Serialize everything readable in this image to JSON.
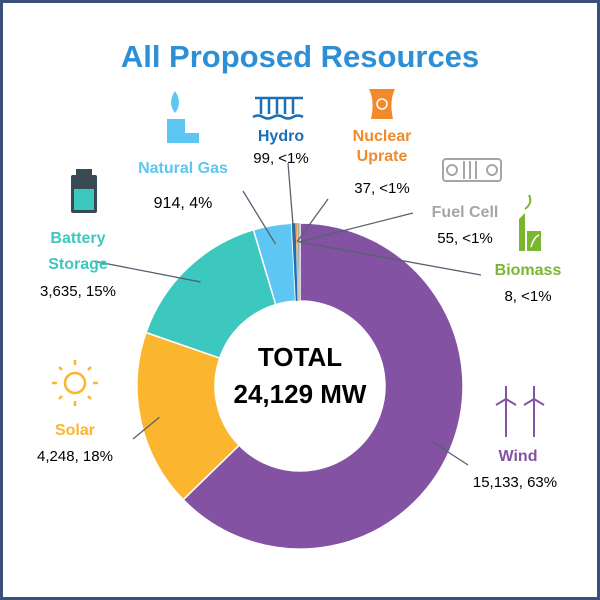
{
  "chart_data": {
    "type": "pie",
    "title": "All Proposed Resources",
    "center_label": {
      "line1": "TOTAL",
      "line2": "24,129 MW"
    },
    "slices": [
      {
        "name": "Wind",
        "value": 15133,
        "value_text": "15,133, 63%",
        "color": "#8352a2",
        "icon": "wind-turbines-icon"
      },
      {
        "name": "Solar",
        "value": 4248,
        "value_text": "4,248, 18%",
        "color": "#fbb52f",
        "icon": "sun-icon"
      },
      {
        "name": "Battery Storage",
        "value": 3635,
        "value_text": "3,635, 15%",
        "color": "#3cc7bf",
        "icon": "battery-icon"
      },
      {
        "name": "Natural Gas",
        "value": 914,
        "value_text": "914,  4%",
        "color": "#5ec6f2",
        "icon": "gas-flame-icon"
      },
      {
        "name": "Hydro",
        "value": 99,
        "value_text": "99, <1%",
        "color": "#1a6fb5",
        "icon": "hydro-dam-icon"
      },
      {
        "name": "Nuclear Uprate",
        "value": 37,
        "value_text": "37, <1%",
        "color": "#f28a2b",
        "icon": "nuclear-plant-icon"
      },
      {
        "name": "Fuel Cell",
        "value": 55,
        "value_text": "55, <1%",
        "color": "#a6a6a6",
        "icon": "fuel-cell-icon"
      },
      {
        "name": "Biomass",
        "value": 8,
        "value_text": "8, <1%",
        "color": "#7ab72f",
        "icon": "biomass-plant-icon"
      }
    ]
  }
}
